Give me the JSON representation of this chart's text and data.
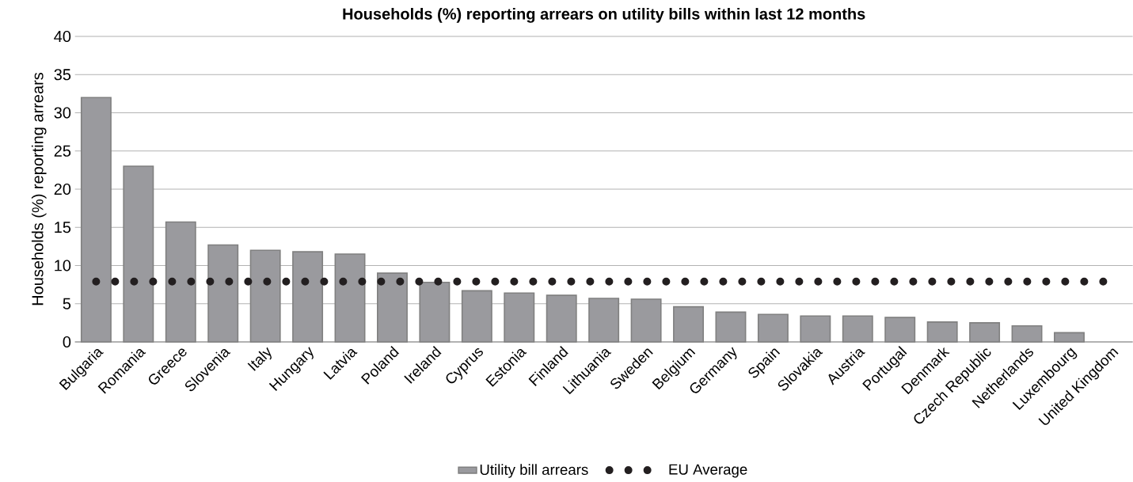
{
  "chart_data": {
    "type": "bar",
    "title": "Households (%) reporting arrears on utility bills within last 12 months",
    "ylabel": "Households (%) reporting arrears",
    "categories": [
      "Bulgaria",
      "Romania",
      "Greece",
      "Slovenia",
      "Italy",
      "Hungary",
      "Latvia",
      "Poland",
      "Ireland",
      "Cyprus",
      "Estonia",
      "Finland",
      "Lithuania",
      "Sweden",
      "Belgium",
      "Germany",
      "Spain",
      "Slovakia",
      "Austria",
      "Portugal",
      "Denmark",
      "Czech Republic",
      "Netherlands",
      "Luxembourg",
      "United Kingdom"
    ],
    "series": [
      {
        "name": "Utility bill arrears",
        "color": "#9a9a9e",
        "values": [
          32.0,
          23.0,
          15.7,
          12.7,
          12.0,
          11.8,
          11.5,
          9.0,
          7.8,
          6.7,
          6.4,
          6.1,
          5.7,
          5.6,
          4.6,
          3.9,
          3.6,
          3.4,
          3.4,
          3.2,
          2.6,
          2.5,
          2.1,
          1.2,
          null
        ]
      },
      {
        "name": "EU Average",
        "type": "line",
        "color": "#231f20",
        "line_style": "dotted",
        "marker": "none",
        "values": [
          7.9,
          7.9,
          7.9,
          7.9,
          7.9,
          7.9,
          7.9,
          7.9,
          7.9,
          7.9,
          7.9,
          7.9,
          7.9,
          7.9,
          7.9,
          7.9,
          7.9,
          7.9,
          7.9,
          7.9,
          7.9,
          7.9,
          7.9,
          7.9,
          7.9
        ]
      }
    ],
    "ylim": [
      0,
      40
    ],
    "yticks": [
      0,
      5,
      10,
      15,
      20,
      25,
      30,
      35,
      40
    ],
    "grid": "y",
    "legend": "bottom"
  }
}
